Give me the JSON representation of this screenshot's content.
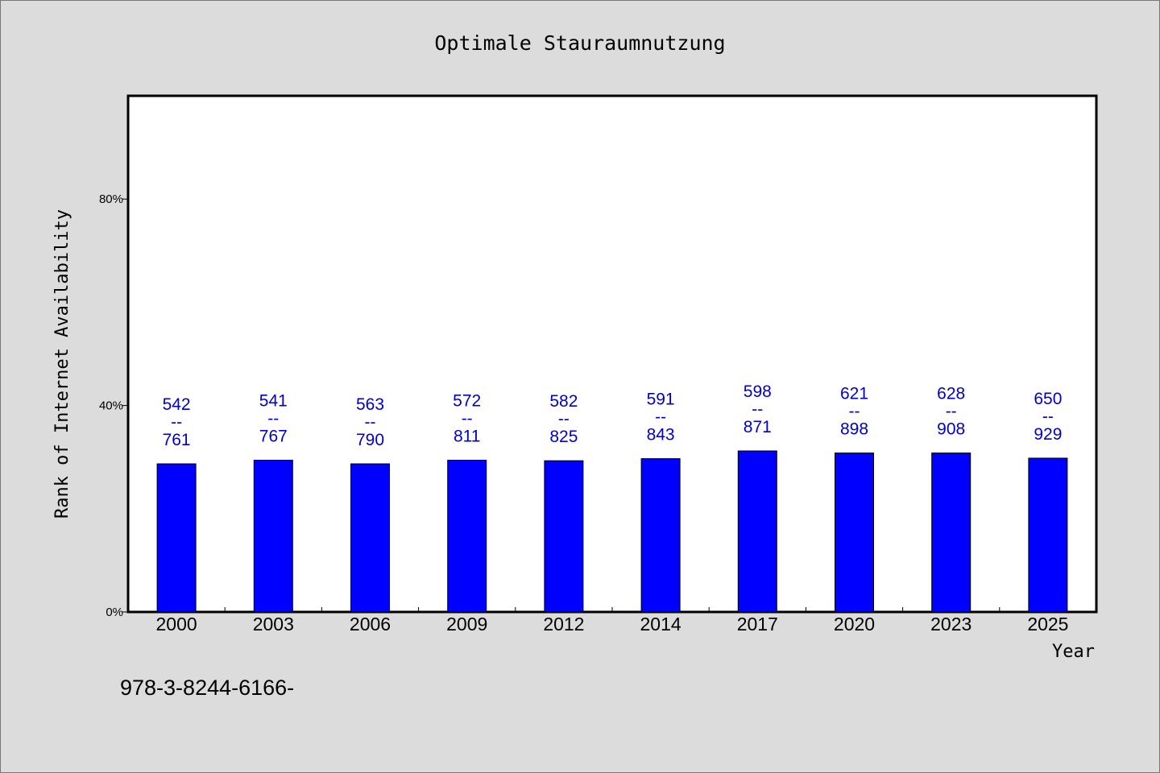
{
  "chart_data": {
    "type": "bar",
    "title": "Optimale Stauraumnutzung",
    "xlabel": "Year",
    "ylabel": "Rank of Internet Availability",
    "categories": [
      "2000",
      "2003",
      "2006",
      "2009",
      "2012",
      "2014",
      "2017",
      "2020",
      "2023",
      "2025"
    ],
    "values": [
      28.7,
      29.4,
      28.7,
      29.4,
      29.3,
      29.7,
      31.2,
      30.8,
      30.8,
      29.8
    ],
    "data_labels": [
      [
        "542",
        "--",
        "761"
      ],
      [
        "541",
        "--",
        "767"
      ],
      [
        "563",
        "--",
        "790"
      ],
      [
        "572",
        "--",
        "811"
      ],
      [
        "582",
        "--",
        "825"
      ],
      [
        "591",
        "--",
        "843"
      ],
      [
        "598",
        "--",
        "871"
      ],
      [
        "621",
        "--",
        "898"
      ],
      [
        "628",
        "--",
        "908"
      ],
      [
        "650",
        "--",
        "929"
      ]
    ],
    "yticks": [
      0,
      40,
      80
    ],
    "ytick_labels": [
      "0%",
      "40%",
      "80%"
    ],
    "ylim": [
      0,
      100
    ],
    "grid": false,
    "legend": "none",
    "colors": {
      "bar": "#0000ff",
      "data_label": "#0000cc"
    }
  },
  "footnote": "978-3-8244-6166-"
}
